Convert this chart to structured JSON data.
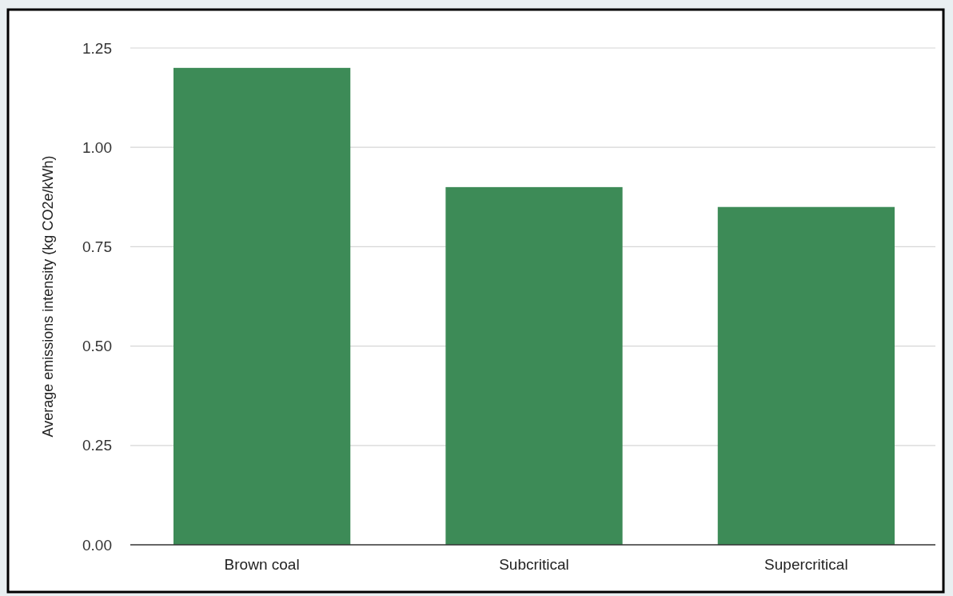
{
  "chart_data": {
    "type": "bar",
    "ylabel": "Average emissions intensity (kg CO2e/kWh)",
    "categories": [
      "Brown coal",
      "Subcritical",
      "Supercritical"
    ],
    "values": [
      1.2,
      0.9,
      0.85
    ],
    "color": "#3d8b57",
    "ylim": [
      0,
      1.25
    ],
    "yticks": [
      {
        "value": 0,
        "label": "0.00"
      },
      {
        "value": 0.25,
        "label": "0.25"
      },
      {
        "value": 0.5,
        "label": "0.50"
      },
      {
        "value": 0.75,
        "label": "0.75"
      },
      {
        "value": 1,
        "label": "1.00"
      },
      {
        "value": 1.25,
        "label": "1.25"
      }
    ],
    "grid": "y"
  }
}
